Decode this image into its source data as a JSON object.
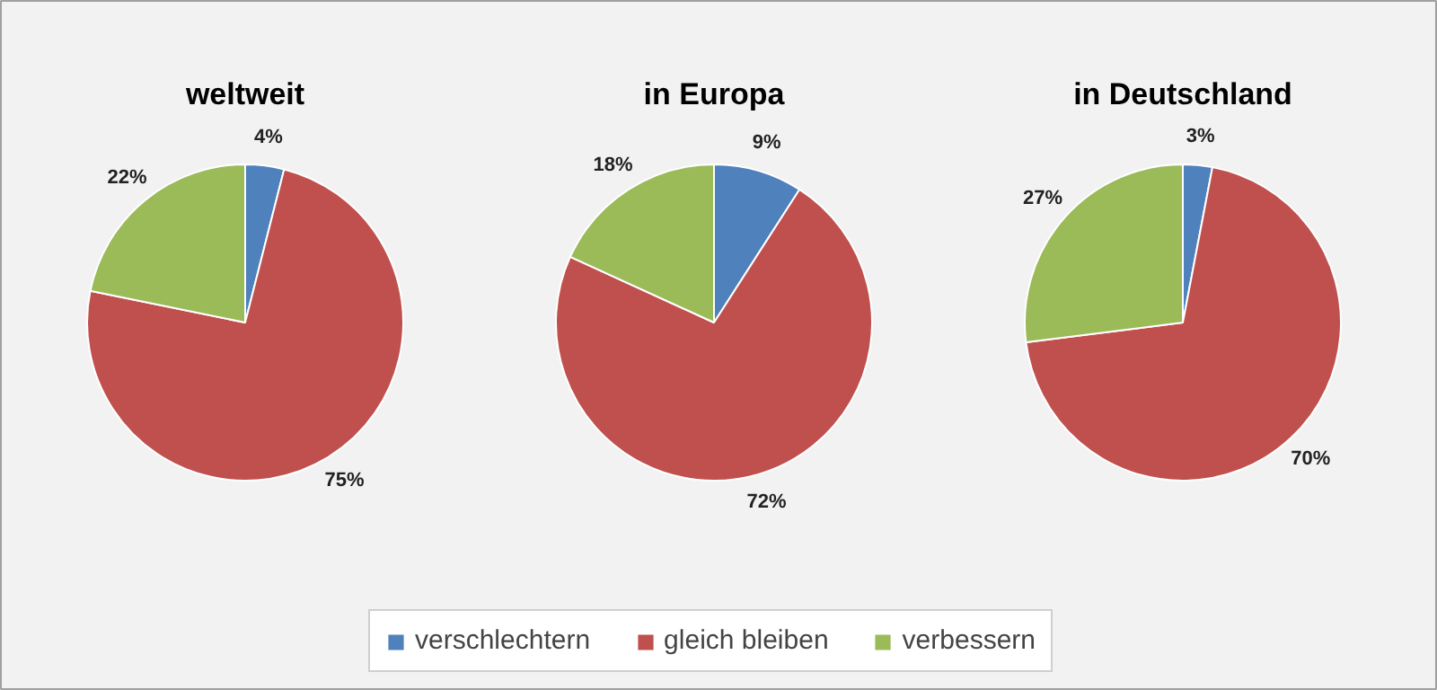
{
  "chart_data": [
    {
      "type": "pie",
      "title": "weltweit",
      "categories": [
        "verschlechtern",
        "gleich bleiben",
        "verbessern"
      ],
      "values": [
        4,
        75,
        22
      ],
      "colors": [
        "#4f81bd",
        "#c0504d",
        "#9bbb59"
      ],
      "value_labels": [
        "4%",
        "75%",
        "22%"
      ],
      "legend": "bottom"
    },
    {
      "type": "pie",
      "title": "in Europa",
      "categories": [
        null,
        null,
        null
      ],
      "values": [
        9,
        72,
        18
      ],
      "colors": [
        "#4f81bd",
        "#c0504d",
        "#9bbb59"
      ],
      "value_labels": [
        "9%",
        "72%",
        "18%"
      ]
    },
    {
      "type": "pie",
      "title": "in Deutschland",
      "categories": [
        null,
        null,
        null
      ],
      "values": [
        3,
        70,
        27
      ],
      "colors": [
        "#4f81bd",
        "#c0504d",
        "#9bbb59"
      ],
      "value_labels": [
        "3%",
        "70%",
        "27%"
      ]
    }
  ]
}
